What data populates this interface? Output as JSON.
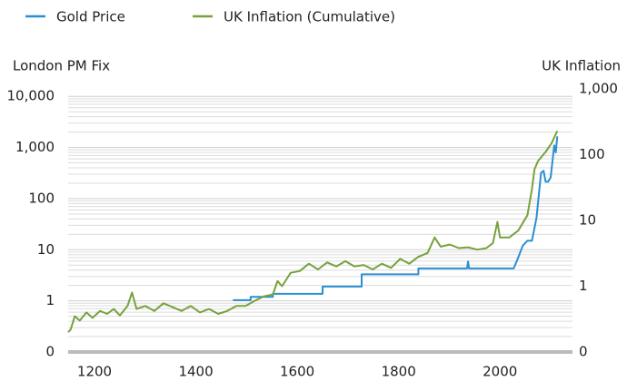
{
  "chart_data": {
    "type": "line",
    "y_label": "London PM Fix",
    "y2_label": "UK Inflation",
    "xlim": [
      1148,
      2143
    ],
    "xticks": [
      1200,
      1400,
      1600,
      1800,
      2000
    ],
    "ylim": [
      0.1,
      14000
    ],
    "yticks": [
      {
        "value": 0.1,
        "label": "0"
      },
      1,
      10,
      100,
      {
        "value": 1000,
        "label": "1,000"
      },
      {
        "value": 10000,
        "label": "10,000"
      }
    ],
    "y2lim": [
      0.1,
      1000
    ],
    "y2ticks": [
      {
        "value": 0.1,
        "label": "0"
      },
      1,
      10,
      100,
      {
        "value": 1000,
        "label": "1,000"
      }
    ],
    "log_scale": true,
    "grid": true,
    "minor_grid": true,
    "legend": "top-left",
    "series": [
      {
        "name": "Gold Price",
        "color": "#2a8fd1",
        "axis": "y",
        "x": [
          1473,
          1508,
          1508,
          1552,
          1552,
          1650,
          1650,
          1727,
          1727,
          1839,
          1839,
          1935,
          1937,
          1939,
          2027,
          2035,
          2045,
          2054,
          2063,
          2072,
          2081,
          2086,
          2090,
          2095,
          2100,
          2107,
          2110,
          2113
        ],
        "values": [
          1.03,
          1.03,
          1.2,
          1.2,
          1.37,
          1.37,
          1.9,
          1.9,
          3.3,
          3.3,
          4.3,
          4.3,
          5.9,
          4.3,
          4.3,
          6.7,
          12,
          15,
          15,
          42,
          320,
          350,
          215,
          215,
          260,
          1100,
          800,
          1650
        ]
      },
      {
        "name": "UK Inflation (Cumulative)",
        "color": "#77a23b",
        "axis": "y2",
        "x": [
          1148,
          1153,
          1161,
          1171,
          1184,
          1196,
          1211,
          1225,
          1238,
          1250,
          1265,
          1274,
          1283,
          1300,
          1318,
          1336,
          1354,
          1372,
          1390,
          1408,
          1426,
          1444,
          1462,
          1480,
          1498,
          1516,
          1534,
          1552,
          1561,
          1570,
          1587,
          1605,
          1623,
          1641,
          1659,
          1677,
          1695,
          1713,
          1731,
          1749,
          1767,
          1785,
          1803,
          1821,
          1839,
          1857,
          1871,
          1883,
          1901,
          1919,
          1937,
          1955,
          1973,
          1986,
          1995,
          2000,
          2018,
          2036,
          2054,
          2063,
          2068,
          2075,
          2090,
          2102,
          2113
        ],
        "values": [
          0.2,
          0.22,
          0.35,
          0.3,
          0.4,
          0.33,
          0.42,
          0.38,
          0.45,
          0.36,
          0.5,
          0.8,
          0.45,
          0.5,
          0.42,
          0.55,
          0.48,
          0.42,
          0.5,
          0.4,
          0.45,
          0.38,
          0.42,
          0.5,
          0.5,
          0.6,
          0.7,
          0.75,
          1.2,
          1.0,
          1.6,
          1.7,
          2.2,
          1.8,
          2.3,
          2.0,
          2.4,
          2.0,
          2.1,
          1.8,
          2.2,
          1.9,
          2.6,
          2.2,
          2.8,
          3.2,
          5.5,
          4.0,
          4.3,
          3.8,
          3.9,
          3.6,
          3.8,
          4.5,
          9.5,
          5.5,
          5.5,
          7,
          12,
          30,
          60,
          80,
          110,
          150,
          230
        ]
      }
    ]
  }
}
